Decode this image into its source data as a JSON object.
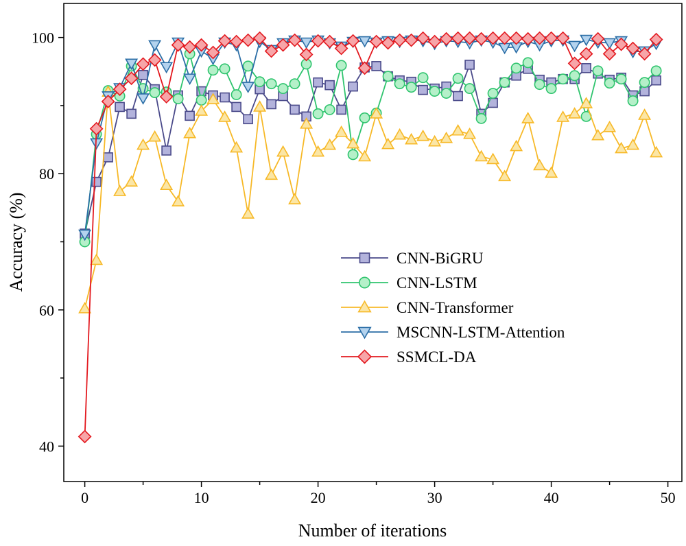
{
  "chart_data": {
    "type": "line",
    "xlabel": "Number of iterations",
    "ylabel": "Accuracy (%)",
    "xlim": [
      -1.8,
      51.2
    ],
    "ylim": [
      34.8,
      105
    ],
    "xticks": [
      0,
      10,
      20,
      30,
      40,
      50
    ],
    "yticks": [
      40,
      60,
      80,
      100
    ],
    "x": [
      0,
      1,
      2,
      3,
      4,
      5,
      6,
      7,
      8,
      9,
      10,
      11,
      12,
      13,
      14,
      15,
      16,
      17,
      18,
      19,
      20,
      21,
      22,
      23,
      24,
      25,
      26,
      27,
      28,
      29,
      30,
      31,
      32,
      33,
      34,
      35,
      36,
      37,
      38,
      39,
      40,
      41,
      42,
      43,
      44,
      45,
      46,
      47,
      48,
      49
    ],
    "legend_position": "center-right",
    "series": [
      {
        "name": "CNN-BiGRU",
        "color": "#4a4a8a",
        "fill": "#b3b3dc",
        "marker": "square",
        "values": [
          71.2,
          78.8,
          82.4,
          89.8,
          88.8,
          94.5,
          92.4,
          83.4,
          91.5,
          88.5,
          92.1,
          91.5,
          91.2,
          89.8,
          88.0,
          92.4,
          90.2,
          91.4,
          89.4,
          88.4,
          93.4,
          93.0,
          89.4,
          92.8,
          95.6,
          95.8,
          94.3,
          93.7,
          93.5,
          92.3,
          92.5,
          92.8,
          91.4,
          96.0,
          88.8,
          90.4,
          93.4,
          94.4,
          95.4,
          93.8,
          93.4,
          93.9,
          93.9,
          95.5,
          94.7,
          93.8,
          94.1,
          91.5,
          92.1,
          93.7
        ]
      },
      {
        "name": "CNN-LSTM",
        "color": "#2fc46e",
        "fill": "#b5f0c9",
        "marker": "circle",
        "values": [
          70.0,
          85.8,
          92.2,
          91.4,
          95.8,
          92.5,
          91.9,
          92.0,
          91.0,
          97.6,
          90.8,
          95.2,
          95.4,
          91.6,
          95.8,
          93.5,
          93.2,
          92.5,
          93.2,
          96.1,
          88.8,
          89.4,
          95.9,
          82.8,
          88.2,
          88.9,
          94.3,
          93.2,
          92.7,
          94.1,
          92.1,
          91.8,
          94.0,
          92.5,
          88.1,
          91.8,
          93.4,
          95.5,
          96.3,
          93.1,
          92.5,
          93.9,
          94.4,
          88.4,
          95.1,
          93.3,
          93.9,
          90.7,
          93.4,
          95.1
        ]
      },
      {
        "name": "CNN-Transformer",
        "color": "#f7b928",
        "fill": "#fbe6a6",
        "marker": "triangle-up",
        "values": [
          60.2,
          67.3,
          92.0,
          77.4,
          78.8,
          84.2,
          85.4,
          78.3,
          75.9,
          85.9,
          89.2,
          90.9,
          88.3,
          83.8,
          74.1,
          89.8,
          79.8,
          83.2,
          76.2,
          87.3,
          83.2,
          84.2,
          86.1,
          84.4,
          82.5,
          88.8,
          84.3,
          85.7,
          85.0,
          85.5,
          84.7,
          85.2,
          86.3,
          85.8,
          82.5,
          82.1,
          79.6,
          84.0,
          88.1,
          81.2,
          80.1,
          88.3,
          88.8,
          90.3,
          85.6,
          86.8,
          83.7,
          84.2,
          88.6,
          83.1
        ]
      },
      {
        "name": "MSCNN-LSTM-Attention",
        "color": "#2b6ea6",
        "fill": "#b4d3ee",
        "marker": "triangle-down",
        "values": [
          71.1,
          84.5,
          91.4,
          92.6,
          96.2,
          91.1,
          98.9,
          95.7,
          99.3,
          94.0,
          98.0,
          96.9,
          99.3,
          98.9,
          92.8,
          99.4,
          98.2,
          99.2,
          99.6,
          99.3,
          99.6,
          99.2,
          98.7,
          99.4,
          99.5,
          99.3,
          99.5,
          99.4,
          99.6,
          99.5,
          99.1,
          99.5,
          99.4,
          99.2,
          99.6,
          99.3,
          98.5,
          98.6,
          99.4,
          98.9,
          99.5,
          99.6,
          98.8,
          99.7,
          99.3,
          99.2,
          99.5,
          97.9,
          98.0,
          99.1
        ]
      },
      {
        "name": "SSMCL-DA",
        "color": "#e3191f",
        "fill": "#f7a5a8",
        "marker": "diamond",
        "values": [
          41.4,
          86.6,
          90.6,
          92.4,
          94.0,
          96.1,
          96.7,
          91.3,
          98.9,
          98.6,
          98.9,
          97.8,
          99.5,
          99.4,
          99.6,
          99.9,
          98.0,
          98.9,
          99.6,
          97.5,
          99.5,
          99.4,
          98.4,
          99.5,
          95.5,
          99.4,
          99.2,
          99.6,
          99.6,
          99.9,
          99.4,
          99.8,
          99.9,
          99.9,
          99.8,
          99.9,
          99.9,
          99.9,
          99.8,
          99.9,
          99.9,
          99.9,
          96.2,
          97.6,
          99.8,
          97.6,
          99.0,
          98.4,
          97.6,
          99.7
        ]
      }
    ]
  }
}
